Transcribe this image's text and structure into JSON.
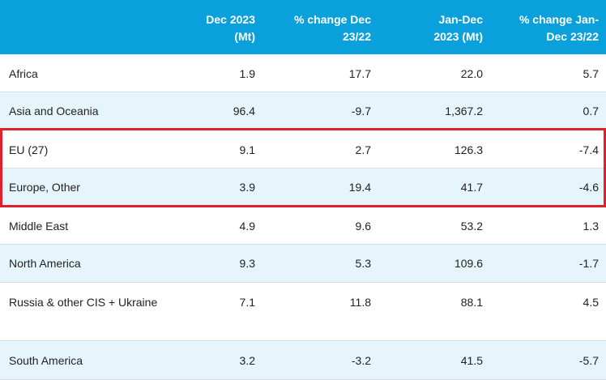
{
  "table": {
    "headers": {
      "region": "",
      "dec2023": "Dec 2023\n(Mt)",
      "pct_dec": "% change Dec\n23/22",
      "jandec": "Jan-Dec\n2023 (Mt)",
      "pct_jandec": "% change Jan-\nDec 23/22"
    },
    "rows": [
      {
        "region": "Africa",
        "dec2023": "1.9",
        "pct_dec": "17.7",
        "jandec": "22.0",
        "pct_jandec": "5.7"
      },
      {
        "region": "Asia and Oceania",
        "dec2023": "96.4",
        "pct_dec": "-9.7",
        "jandec": "1,367.2",
        "pct_jandec": "0.7"
      },
      {
        "region": "EU (27)",
        "dec2023": "9.1",
        "pct_dec": "2.7",
        "jandec": "126.3",
        "pct_jandec": "-7.4"
      },
      {
        "region": "Europe, Other",
        "dec2023": "3.9",
        "pct_dec": "19.4",
        "jandec": "41.7",
        "pct_jandec": "-4.6"
      },
      {
        "region": "Middle East",
        "dec2023": "4.9",
        "pct_dec": "9.6",
        "jandec": "53.2",
        "pct_jandec": "1.3"
      },
      {
        "region": "North America",
        "dec2023": "9.3",
        "pct_dec": "5.3",
        "jandec": "109.6",
        "pct_jandec": "-1.7"
      },
      {
        "region": "Russia & other CIS + Ukraine",
        "dec2023": "7.1",
        "pct_dec": "11.8",
        "jandec": "88.1",
        "pct_jandec": "4.5"
      },
      {
        "region": "South America",
        "dec2023": "3.2",
        "pct_dec": "-3.2",
        "jandec": "41.5",
        "pct_jandec": "-5.7"
      }
    ]
  },
  "colors": {
    "header_bg": "#0aa0dc",
    "alt_row_bg": "#e6f4fb",
    "highlight_border": "#e0202a"
  }
}
